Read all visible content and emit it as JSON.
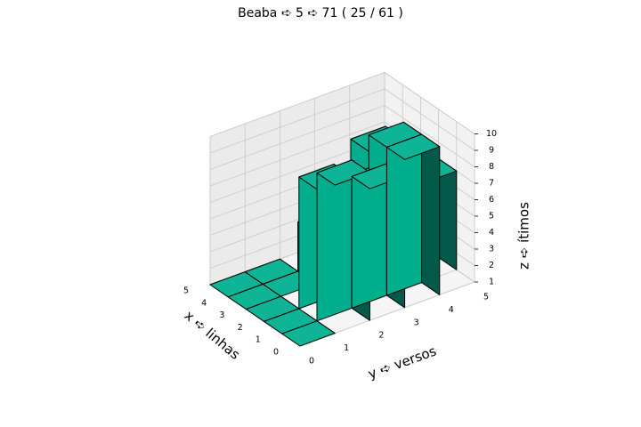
{
  "chart_data": {
    "type": "bar3d",
    "title": "Beaba ➪ 5 ➪ 71 ( 25 / 61 )",
    "xlabel": "x ➪ linhas",
    "ylabel": "y ➪ versos",
    "zlabel": "z ➪ ítimos",
    "x_ticks": [
      "0",
      "1",
      "2",
      "3",
      "4",
      "5"
    ],
    "y_ticks": [
      "0",
      "1",
      "2",
      "3",
      "4",
      "5"
    ],
    "z_ticks": [
      "1",
      "2",
      "3",
      "4",
      "5",
      "6",
      "7",
      "8",
      "9",
      "10"
    ],
    "zlim": [
      1,
      10
    ],
    "grid": true,
    "bars": [
      {
        "x": 0,
        "y": 0,
        "z": 1
      },
      {
        "x": 0,
        "y": 1,
        "z": 10
      },
      {
        "x": 0,
        "y": 2,
        "z": 9
      },
      {
        "x": 0,
        "y": 3,
        "z": 10
      },
      {
        "x": 1,
        "y": 0,
        "z": 1
      },
      {
        "x": 1,
        "y": 1,
        "z": 9
      },
      {
        "x": 1,
        "y": 2,
        "z": 8
      },
      {
        "x": 1,
        "y": 3,
        "z": 10
      },
      {
        "x": 1,
        "y": 4,
        "z": 7
      },
      {
        "x": 2,
        "y": 0,
        "z": 1
      },
      {
        "x": 2,
        "y": 3,
        "z": 9
      },
      {
        "x": 2,
        "y": 4,
        "z": 1
      },
      {
        "x": 3,
        "y": 0,
        "z": 1
      },
      {
        "x": 3,
        "y": 1,
        "z": 1
      },
      {
        "x": 3,
        "y": 2,
        "z": 4
      },
      {
        "x": 4,
        "y": 0,
        "z": 1
      },
      {
        "x": 4,
        "y": 1,
        "z": 1
      }
    ],
    "colors": {
      "top": "#0fb497",
      "front": "#00ae8e",
      "side": "#03594a",
      "edge": "#000000"
    }
  }
}
